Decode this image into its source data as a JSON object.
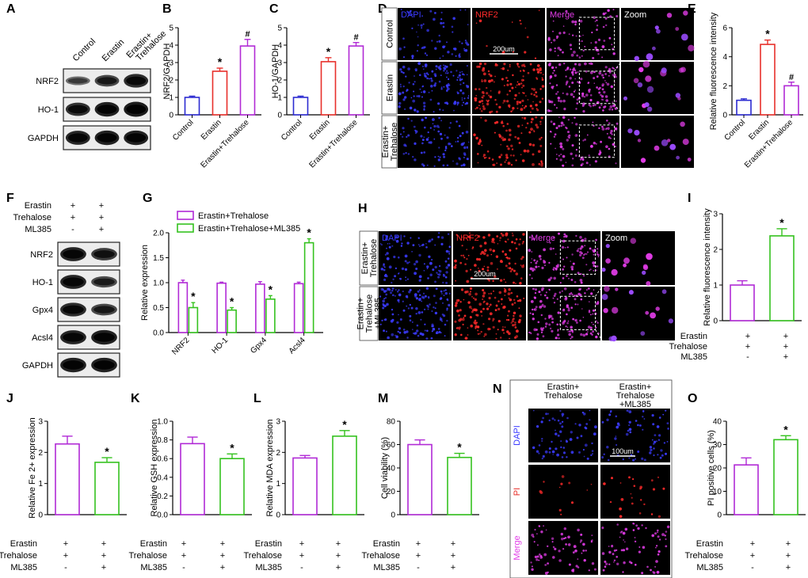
{
  "panels": [
    "A",
    "B",
    "C",
    "D",
    "E",
    "F",
    "G",
    "H",
    "I",
    "J",
    "K",
    "L",
    "M",
    "N",
    "O"
  ],
  "colors": {
    "purple": "#b12ad6",
    "red": "#e8302b",
    "blue": "#2c2bd1",
    "green": "#35c21f",
    "black": "#000000",
    "dapi": "#3b3bff",
    "nrf2": "#ff2a2a",
    "merge": "#e23ce8"
  },
  "western_A": {
    "columns": [
      "Control",
      "Erastin",
      "Erastin+ Trehalose"
    ],
    "rows": [
      "NRF2",
      "HO-1",
      "GAPDH"
    ]
  },
  "western_F": {
    "treatments": [
      {
        "name": "Erastin",
        "marks": [
          "+",
          "+"
        ]
      },
      {
        "name": "Trehalose",
        "marks": [
          "+",
          "+"
        ]
      },
      {
        "name": "ML385",
        "marks": [
          "-",
          "+"
        ]
      }
    ],
    "rows": [
      "NRF2",
      "HO-1",
      "Gpx4",
      "Acsl4",
      "GAPDH"
    ]
  },
  "image_D": {
    "columns": [
      "DAPI",
      "NRF2",
      "Merge",
      "Zoom"
    ],
    "rows": [
      "Control",
      "Erastin",
      "Erastin+ Trehalose"
    ],
    "scale": "200um"
  },
  "image_H": {
    "columns": [
      "DAPI",
      "NRF2",
      "Merge",
      "Zoom"
    ],
    "rows": [
      "Erastin+ Trehalose",
      "Erastin+ Trehalose +ML385"
    ],
    "scale": "200um"
  },
  "image_N": {
    "columns": [
      "Erastin+ Trehalose",
      "Erastin+ Trehalose +ML385"
    ],
    "rows": [
      "DAPI",
      "PI",
      "Merge"
    ],
    "scale": "100um"
  },
  "treatment_table": {
    "rows": [
      {
        "name": "Erastin",
        "marks": [
          "+",
          "+"
        ]
      },
      {
        "name": "Trehalose",
        "marks": [
          "+",
          "+"
        ]
      },
      {
        "name": "ML385",
        "marks": [
          "-",
          "+"
        ]
      }
    ]
  },
  "chart_data": [
    {
      "id": "B",
      "type": "bar",
      "categories": [
        "Control",
        "Erastin",
        "Erastin+Trehalose"
      ],
      "values": [
        1.0,
        2.5,
        3.95
      ],
      "errors": [
        0.07,
        0.18,
        0.38
      ],
      "ylabel": "NRF2/GAPDH",
      "ylim": [
        0,
        5
      ],
      "yticks": [
        0,
        1,
        2,
        3,
        4,
        5
      ],
      "annotations": [
        "",
        "*",
        "#"
      ]
    },
    {
      "id": "C",
      "type": "bar",
      "categories": [
        "Control",
        "Erastin",
        "Erastin+Trehalose"
      ],
      "values": [
        1.0,
        3.05,
        3.95
      ],
      "errors": [
        0.07,
        0.23,
        0.2
      ],
      "ylabel": "HO-1/GAPDH",
      "ylim": [
        0,
        5
      ],
      "yticks": [
        0,
        1,
        2,
        3,
        4,
        5
      ],
      "annotations": [
        "",
        "*",
        "#"
      ]
    },
    {
      "id": "E",
      "type": "bar",
      "categories": [
        "Control",
        "Erastin",
        "Erastin+Trehalose"
      ],
      "values": [
        1.0,
        4.85,
        2.0
      ],
      "errors": [
        0.1,
        0.3,
        0.25
      ],
      "ylabel": "Relative fluorescence intensity",
      "ylim": [
        0,
        6
      ],
      "yticks": [
        0,
        2,
        4,
        6
      ],
      "annotations": [
        "",
        "*",
        "#"
      ]
    },
    {
      "id": "G",
      "type": "bar",
      "categories": [
        "NRF2",
        "HO-1",
        "Gpx4",
        "Acsl4"
      ],
      "series": [
        {
          "name": "Erastin+Trehalose",
          "values": [
            1.0,
            0.99,
            0.97,
            0.98
          ],
          "errors": [
            0.05,
            0.02,
            0.05,
            0.03
          ]
        },
        {
          "name": "Erastin+Trehalose+ML385",
          "values": [
            0.5,
            0.45,
            0.67,
            1.8
          ],
          "errors": [
            0.1,
            0.05,
            0.07,
            0.08
          ]
        }
      ],
      "ylabel": "Relative expression",
      "ylim": [
        0,
        2.0
      ],
      "yticks": [
        "0.0",
        "0.5",
        "1.0",
        "1.5",
        "2.0"
      ],
      "annotations": [
        "*",
        "*",
        "*",
        "*"
      ]
    },
    {
      "id": "I",
      "type": "bar",
      "categories": [
        "Erastin+Trehalose",
        "Erastin+Trehalose+ML385"
      ],
      "values": [
        1.0,
        2.38
      ],
      "errors": [
        0.12,
        0.2
      ],
      "ylabel": "Relative fluorescence intensity",
      "ylim": [
        0,
        3
      ],
      "yticks": [
        0,
        1,
        2,
        3
      ],
      "annotations": [
        "",
        "*"
      ]
    },
    {
      "id": "J",
      "type": "bar",
      "categories": [
        "Erastin+Trehalose",
        "Erastin+Trehalose+ML385"
      ],
      "values": [
        2.27,
        1.68
      ],
      "errors": [
        0.25,
        0.15
      ],
      "ylabel": "Relative Fe 2+ expression",
      "ylim": [
        0,
        3
      ],
      "yticks": [
        0,
        1,
        2,
        3
      ],
      "annotations": [
        "",
        "*"
      ]
    },
    {
      "id": "K",
      "type": "bar",
      "categories": [
        "Erastin+Trehalose",
        "Erastin+Trehalose+ML385"
      ],
      "values": [
        0.76,
        0.6
      ],
      "errors": [
        0.07,
        0.05
      ],
      "ylabel": "Relative GSH expression",
      "ylim": [
        0,
        1.0
      ],
      "yticks": [
        "0.0",
        "0.2",
        "0.4",
        "0.6",
        "0.8",
        "1.0"
      ],
      "annotations": [
        "",
        "*"
      ]
    },
    {
      "id": "L",
      "type": "bar",
      "categories": [
        "Erastin+Trehalose",
        "Erastin+Trehalose+ML385"
      ],
      "values": [
        1.82,
        2.52
      ],
      "errors": [
        0.08,
        0.18
      ],
      "ylabel": "Relative MDA expression",
      "ylim": [
        0,
        3
      ],
      "yticks": [
        0,
        1,
        2,
        3
      ],
      "annotations": [
        "",
        "*"
      ]
    },
    {
      "id": "M",
      "type": "bar",
      "categories": [
        "Erastin+Trehalose",
        "Erastin+Trehalose+ML385"
      ],
      "values": [
        60,
        49
      ],
      "errors": [
        4,
        3.5
      ],
      "ylabel": "Cell viability (%)",
      "ylim": [
        0,
        80
      ],
      "yticks": [
        0,
        20,
        40,
        60,
        80
      ],
      "annotations": [
        "",
        "*"
      ]
    },
    {
      "id": "O",
      "type": "bar",
      "categories": [
        "Erastin+Trehalose",
        "Erastin+Trehalose+ML385"
      ],
      "values": [
        21.3,
        32.1
      ],
      "errors": [
        3.0,
        1.7
      ],
      "ylabel": "PI positive cells (%)",
      "ylim": [
        0,
        40
      ],
      "yticks": [
        0,
        10,
        20,
        30,
        40
      ],
      "annotations": [
        "",
        "*"
      ]
    }
  ]
}
